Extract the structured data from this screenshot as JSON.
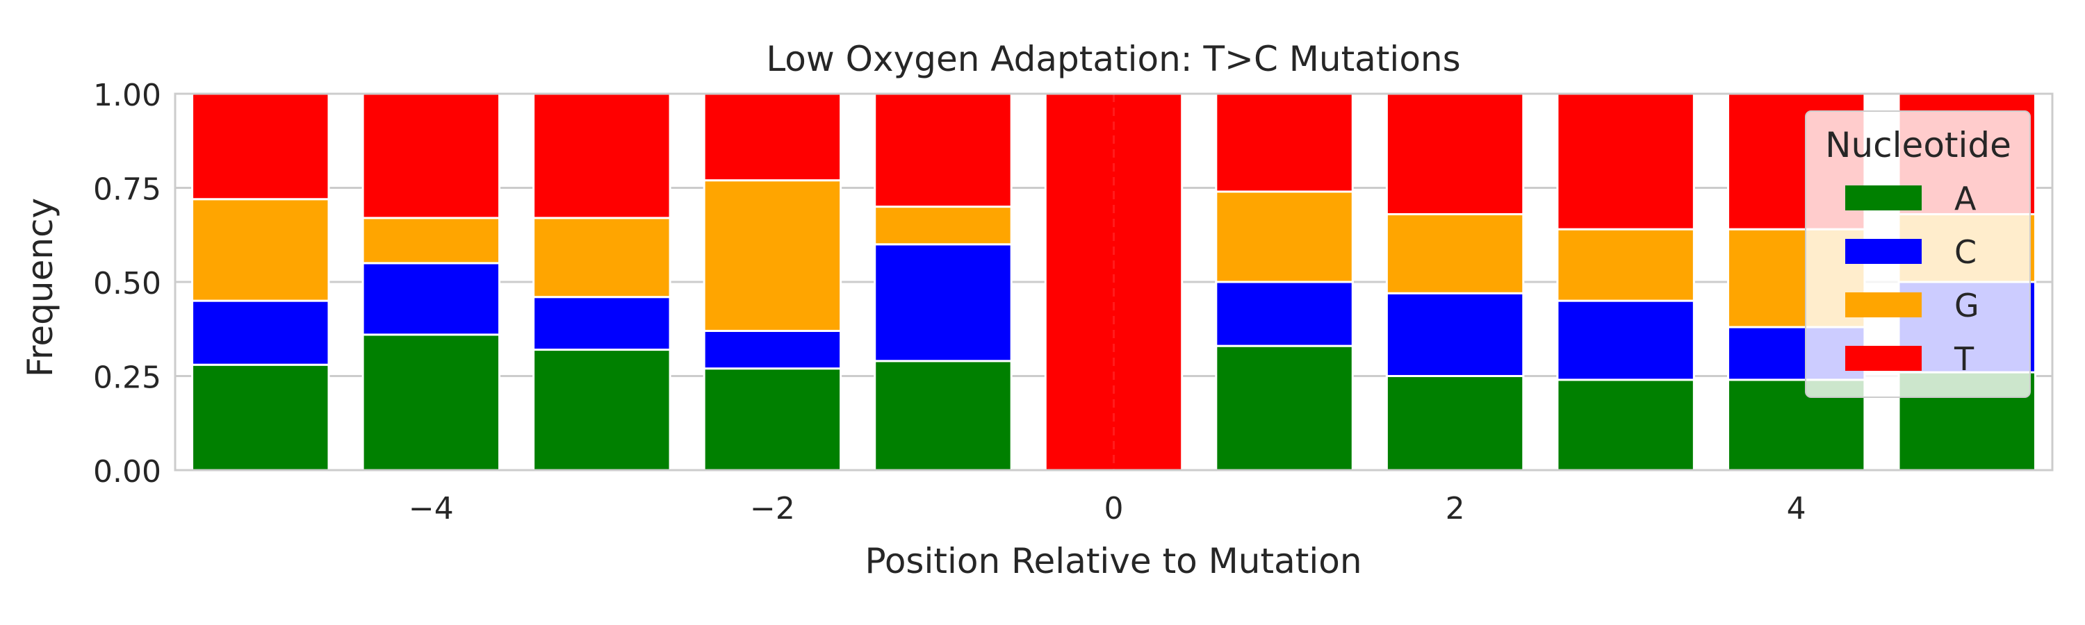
{
  "chart_data": {
    "type": "bar",
    "stacked": true,
    "title": "Low Oxygen Adaptation: T>C Mutations",
    "xlabel": "Position Relative to Mutation",
    "ylabel": "Frequency",
    "x": [
      -5,
      -4,
      -3,
      -2,
      -1,
      0,
      1,
      2,
      3,
      4,
      5
    ],
    "xlim": [
      -5.5,
      5.5
    ],
    "ylim": [
      0,
      1
    ],
    "xticks": [
      -4,
      -2,
      0,
      2,
      4
    ],
    "xtick_labels": [
      "−4",
      "−2",
      "0",
      "2",
      "4"
    ],
    "yticks": [
      0,
      0.25,
      0.5,
      0.75,
      1.0
    ],
    "ytick_labels": [
      "0.00",
      "0.25",
      "0.50",
      "0.75",
      "1.00"
    ],
    "grid": "y",
    "reference_line_x": 0,
    "series": [
      {
        "name": "A",
        "color": "#008000",
        "values": [
          0.28,
          0.36,
          0.32,
          0.27,
          0.29,
          0.0,
          0.33,
          0.25,
          0.24,
          0.24,
          0.26
        ]
      },
      {
        "name": "C",
        "color": "#0000ff",
        "values": [
          0.17,
          0.19,
          0.14,
          0.1,
          0.31,
          0.0,
          0.17,
          0.22,
          0.21,
          0.14,
          0.24
        ]
      },
      {
        "name": "G",
        "color": "#ffa500",
        "values": [
          0.27,
          0.12,
          0.21,
          0.4,
          0.1,
          0.0,
          0.24,
          0.21,
          0.19,
          0.26,
          0.18
        ]
      },
      {
        "name": "T",
        "color": "#ff0000",
        "values": [
          0.28,
          0.33,
          0.33,
          0.23,
          0.3,
          1.0,
          0.26,
          0.32,
          0.36,
          0.36,
          0.32
        ]
      }
    ],
    "legend": {
      "title": "Nucleotide",
      "position": "upper-right"
    }
  }
}
